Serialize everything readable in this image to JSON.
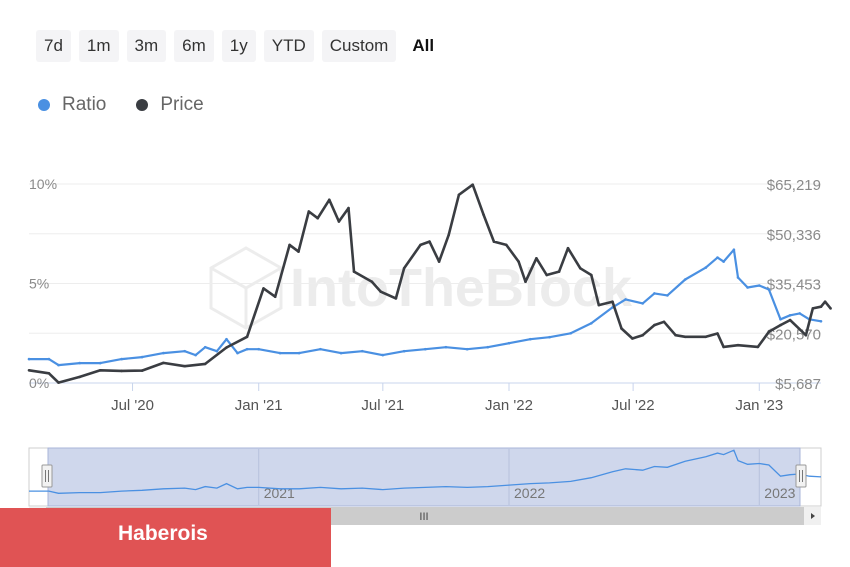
{
  "range_buttons": [
    "7d",
    "1m",
    "3m",
    "6m",
    "1y",
    "YTD",
    "Custom",
    "All"
  ],
  "active_range": "All",
  "legend": {
    "ratio": "Ratio",
    "price": "Price"
  },
  "watermark": "IntoTheBlock",
  "banner": {
    "text": "Haberois"
  },
  "navigator": {
    "years": [
      "2021",
      "2022",
      "2023"
    ],
    "scroll_icon": "III"
  },
  "colors": {
    "ratio": "#4a90e2",
    "price": "#3a3d42",
    "navigator_fill": "#cfd7ec",
    "banner": "#e05354"
  },
  "chart_data": {
    "type": "line",
    "x_range": [
      "2020-02",
      "2023-04"
    ],
    "x_ticks": [
      "Jul '20",
      "Jan '21",
      "Jul '21",
      "Jan '22",
      "Jul '22",
      "Jan '23"
    ],
    "left_axis": {
      "ticks": [
        "0%",
        "5%",
        "10%"
      ],
      "min": 0,
      "max": 10
    },
    "right_axis": {
      "ticks": [
        "$5,687",
        "$20,570",
        "$35,453",
        "$50,336",
        "$65,219"
      ],
      "min": 5687,
      "max": 65219
    },
    "series": [
      {
        "name": "Ratio",
        "axis": "left",
        "points": [
          [
            "2020-02-01",
            1.2
          ],
          [
            "2020-03-01",
            1.2
          ],
          [
            "2020-03-15",
            0.9
          ],
          [
            "2020-04-15",
            1.0
          ],
          [
            "2020-05-15",
            1.0
          ],
          [
            "2020-06-15",
            1.2
          ],
          [
            "2020-07-15",
            1.3
          ],
          [
            "2020-08-15",
            1.5
          ],
          [
            "2020-09-15",
            1.6
          ],
          [
            "2020-10-01",
            1.4
          ],
          [
            "2020-10-15",
            1.8
          ],
          [
            "2020-11-01",
            1.6
          ],
          [
            "2020-11-15",
            2.2
          ],
          [
            "2020-12-01",
            1.5
          ],
          [
            "2020-12-15",
            1.7
          ],
          [
            "2021-01-01",
            1.7
          ],
          [
            "2021-02-01",
            1.5
          ],
          [
            "2021-03-01",
            1.5
          ],
          [
            "2021-04-01",
            1.7
          ],
          [
            "2021-05-01",
            1.5
          ],
          [
            "2021-06-01",
            1.6
          ],
          [
            "2021-07-01",
            1.4
          ],
          [
            "2021-08-01",
            1.6
          ],
          [
            "2021-09-01",
            1.7
          ],
          [
            "2021-10-01",
            1.8
          ],
          [
            "2021-11-01",
            1.7
          ],
          [
            "2021-12-01",
            1.8
          ],
          [
            "2022-01-01",
            2.0
          ],
          [
            "2022-02-01",
            2.2
          ],
          [
            "2022-03-01",
            2.3
          ],
          [
            "2022-04-01",
            2.5
          ],
          [
            "2022-05-01",
            3.0
          ],
          [
            "2022-06-01",
            3.8
          ],
          [
            "2022-06-20",
            4.2
          ],
          [
            "2022-07-15",
            4.0
          ],
          [
            "2022-08-01",
            4.5
          ],
          [
            "2022-08-20",
            4.4
          ],
          [
            "2022-09-15",
            5.2
          ],
          [
            "2022-10-15",
            5.8
          ],
          [
            "2022-11-01",
            6.3
          ],
          [
            "2022-11-10",
            6.1
          ],
          [
            "2022-11-25",
            6.7
          ],
          [
            "2022-12-01",
            5.3
          ],
          [
            "2022-12-15",
            4.8
          ],
          [
            "2023-01-01",
            4.9
          ],
          [
            "2023-01-15",
            4.7
          ],
          [
            "2023-02-01",
            3.2
          ],
          [
            "2023-02-15",
            3.4
          ],
          [
            "2023-03-01",
            3.5
          ],
          [
            "2023-03-15",
            3.2
          ],
          [
            "2023-04-01",
            3.1
          ]
        ]
      },
      {
        "name": "Price",
        "axis": "right",
        "points": [
          [
            "2020-02-01",
            9500
          ],
          [
            "2020-03-01",
            8600
          ],
          [
            "2020-03-15",
            5800
          ],
          [
            "2020-04-15",
            7500
          ],
          [
            "2020-05-15",
            9500
          ],
          [
            "2020-06-15",
            9300
          ],
          [
            "2020-07-15",
            9400
          ],
          [
            "2020-08-15",
            11700
          ],
          [
            "2020-09-15",
            10700
          ],
          [
            "2020-10-15",
            11400
          ],
          [
            "2020-11-15",
            16300
          ],
          [
            "2020-12-15",
            19500
          ],
          [
            "2021-01-08",
            34000
          ],
          [
            "2021-01-25",
            31500
          ],
          [
            "2021-02-15",
            47000
          ],
          [
            "2021-02-28",
            45000
          ],
          [
            "2021-03-15",
            57000
          ],
          [
            "2021-03-28",
            55000
          ],
          [
            "2021-04-14",
            60500
          ],
          [
            "2021-04-28",
            54000
          ],
          [
            "2021-05-12",
            58000
          ],
          [
            "2021-05-20",
            39000
          ],
          [
            "2021-06-15",
            36000
          ],
          [
            "2021-06-28",
            33000
          ],
          [
            "2021-07-20",
            31000
          ],
          [
            "2021-08-01",
            40000
          ],
          [
            "2021-08-25",
            47000
          ],
          [
            "2021-09-07",
            48000
          ],
          [
            "2021-09-21",
            42000
          ],
          [
            "2021-10-05",
            50000
          ],
          [
            "2021-10-20",
            62000
          ],
          [
            "2021-11-09",
            65000
          ],
          [
            "2021-11-25",
            56000
          ],
          [
            "2021-12-10",
            48000
          ],
          [
            "2021-12-28",
            47000
          ],
          [
            "2022-01-15",
            42000
          ],
          [
            "2022-01-25",
            36000
          ],
          [
            "2022-02-10",
            43000
          ],
          [
            "2022-02-25",
            38000
          ],
          [
            "2022-03-15",
            39000
          ],
          [
            "2022-03-28",
            46000
          ],
          [
            "2022-04-15",
            40000
          ],
          [
            "2022-05-01",
            38000
          ],
          [
            "2022-05-12",
            29000
          ],
          [
            "2022-06-01",
            30000
          ],
          [
            "2022-06-14",
            22000
          ],
          [
            "2022-06-30",
            19000
          ],
          [
            "2022-07-15",
            20000
          ],
          [
            "2022-08-01",
            23000
          ],
          [
            "2022-08-15",
            24000
          ],
          [
            "2022-09-01",
            20000
          ],
          [
            "2022-09-15",
            19500
          ],
          [
            "2022-10-15",
            19500
          ],
          [
            "2022-11-01",
            20500
          ],
          [
            "2022-11-10",
            16500
          ],
          [
            "2022-12-01",
            17000
          ],
          [
            "2022-12-30",
            16500
          ],
          [
            "2023-01-15",
            21000
          ],
          [
            "2023-02-01",
            23000
          ],
          [
            "2023-02-15",
            24500
          ],
          [
            "2023-03-10",
            20000
          ],
          [
            "2023-03-20",
            28000
          ],
          [
            "2023-04-01",
            28500
          ],
          [
            "2023-04-07",
            30000
          ],
          [
            "2023-04-15",
            28000
          ]
        ]
      }
    ]
  }
}
